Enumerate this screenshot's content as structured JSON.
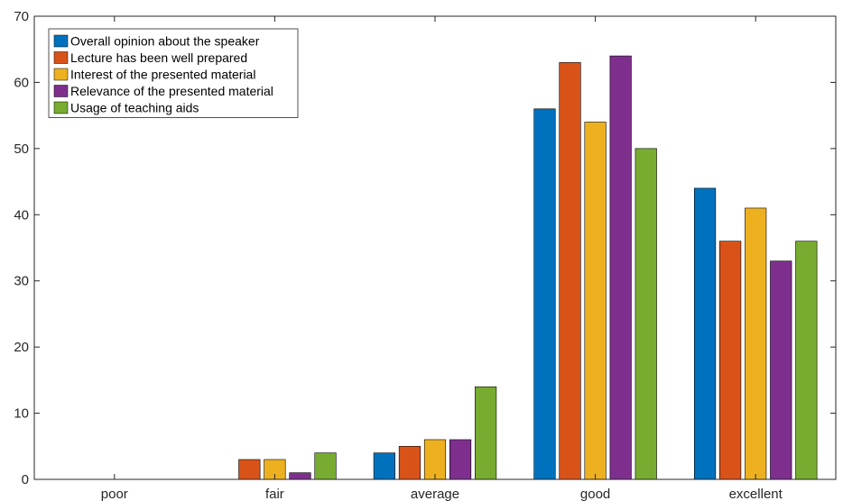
{
  "chart_data": {
    "type": "bar",
    "title": "",
    "xlabel": "",
    "ylabel": "",
    "categories": [
      "poor",
      "fair",
      "average",
      "good",
      "excellent"
    ],
    "ylim": [
      0,
      70
    ],
    "yticks": [
      0,
      10,
      20,
      30,
      40,
      50,
      60,
      70
    ],
    "grid": false,
    "legend_position": "top-left",
    "series": [
      {
        "name": "Overall opinion about the speaker",
        "color": "#0072BD",
        "values": [
          0,
          0,
          4,
          56,
          44
        ]
      },
      {
        "name": "Lecture has been well prepared",
        "color": "#D95319",
        "values": [
          0,
          3,
          5,
          63,
          36
        ]
      },
      {
        "name": "Interest of the presented material",
        "color": "#EDB120",
        "values": [
          0,
          3,
          6,
          54,
          41
        ]
      },
      {
        "name": "Relevance of the presented material",
        "color": "#7E2F8E",
        "values": [
          0,
          1,
          6,
          64,
          33
        ]
      },
      {
        "name": "Usage of teaching aids",
        "color": "#77AC30",
        "values": [
          0,
          4,
          14,
          50,
          36
        ]
      }
    ]
  }
}
